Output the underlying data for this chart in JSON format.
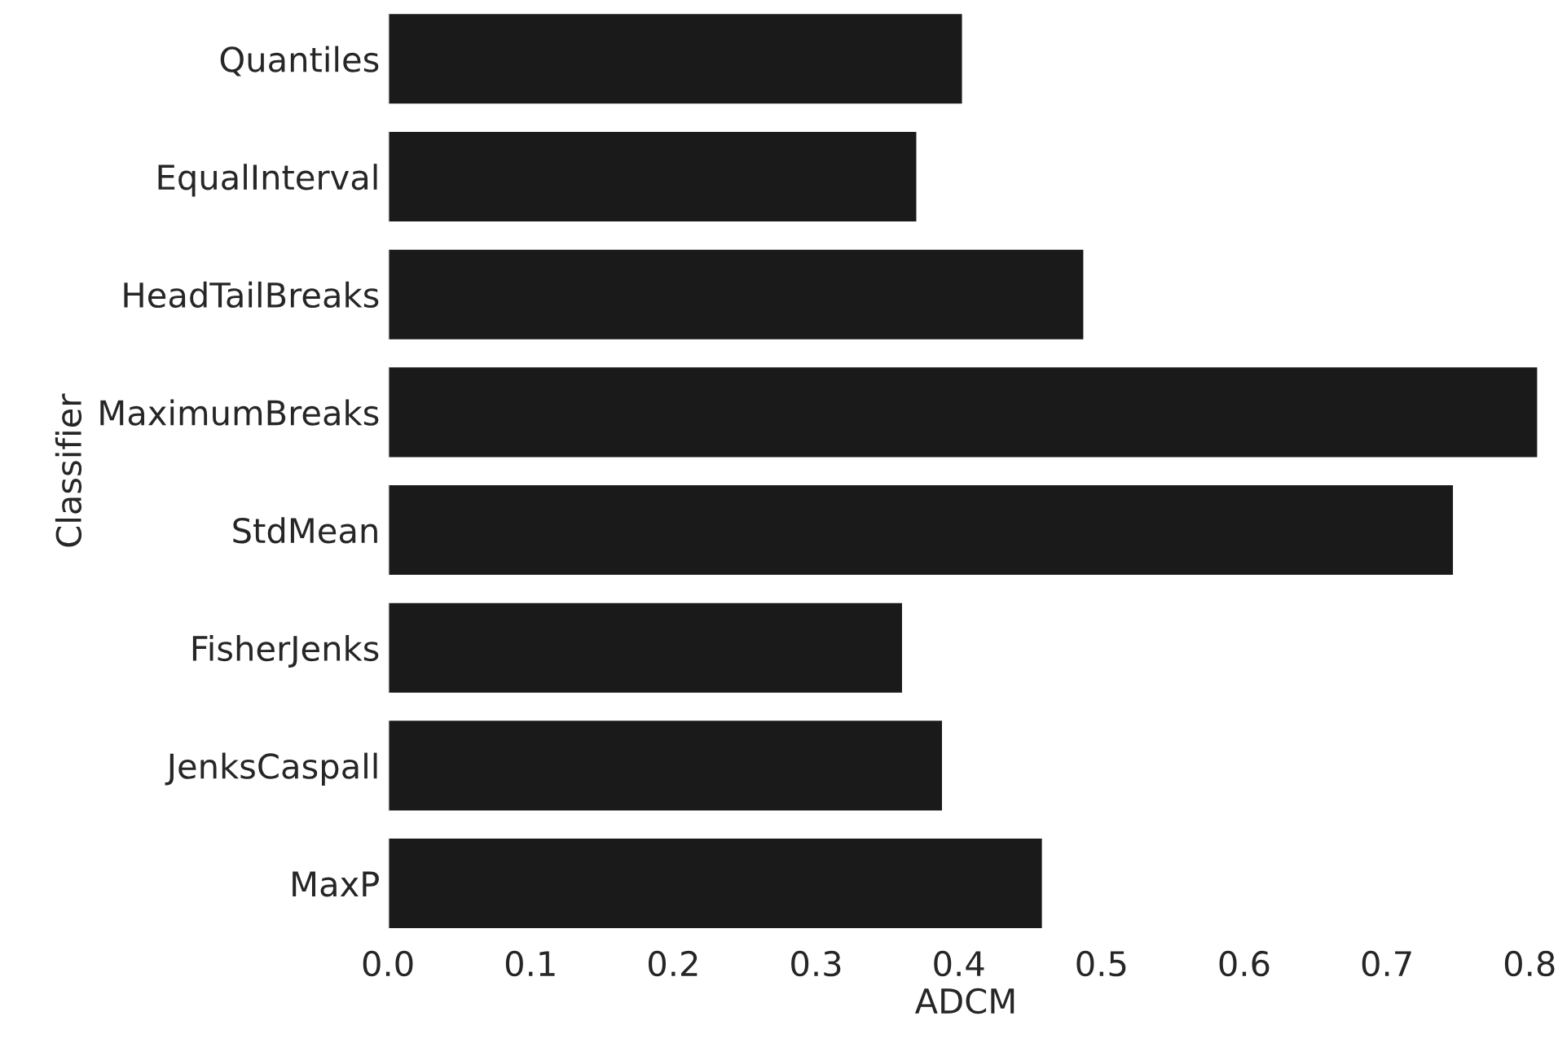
{
  "chart_data": {
    "type": "bar",
    "orientation": "horizontal",
    "xlabel": "ADCM",
    "ylabel": "Classifier",
    "categories": [
      "Quantiles",
      "EqualInterval",
      "HeadTailBreaks",
      "MaximumBreaks",
      "StdMean",
      "FisherJenks",
      "JenksCaspall",
      "MaxP"
    ],
    "values": [
      0.403,
      0.371,
      0.488,
      0.806,
      0.747,
      0.361,
      0.389,
      0.459
    ],
    "color": "#1a1a1a",
    "xlim": [
      0,
      0.81
    ],
    "xticks": [
      {
        "value": 0,
        "label": "0.0"
      },
      0.1,
      0.2,
      0.3,
      0.4,
      0.5,
      0.6,
      0.7,
      0.8
    ],
    "grid": false,
    "legend": false
  }
}
